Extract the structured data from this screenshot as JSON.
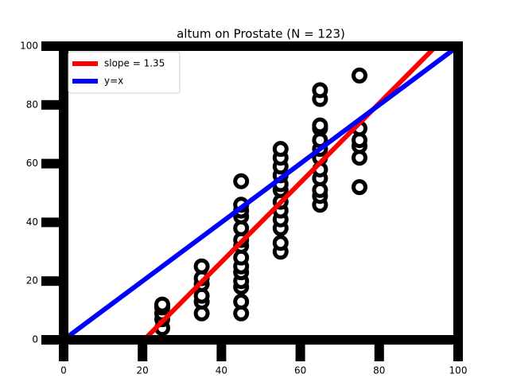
{
  "chart_data": {
    "type": "scatter",
    "title": "altum on Prostate (N = 123)",
    "xlim": [
      0,
      100
    ],
    "ylim": [
      0,
      100
    ],
    "xticks": [
      0,
      20,
      40,
      60,
      80,
      100
    ],
    "yticks": [
      0,
      20,
      40,
      60,
      80,
      100
    ],
    "legend": "upper left",
    "series": [
      {
        "name": "slope = 1.35",
        "type": "line",
        "color": "#ff0000",
        "x": [
          20.4,
          94.4
        ],
        "values": [
          0,
          100
        ]
      },
      {
        "name": "y=x",
        "type": "line",
        "color": "#0000ff",
        "x": [
          0,
          100
        ],
        "values": [
          0,
          100
        ]
      },
      {
        "type": "scatter",
        "color": "#000000",
        "x": [
          25,
          25,
          25,
          25,
          25,
          35,
          35,
          35,
          35,
          35,
          35,
          45,
          45,
          45,
          45,
          45,
          45,
          45,
          45,
          45,
          45,
          45,
          45,
          45,
          45,
          55,
          55,
          55,
          55,
          55,
          55,
          55,
          55,
          55,
          55,
          55,
          55,
          65,
          65,
          65,
          65,
          65,
          65,
          65,
          65,
          65,
          65,
          65,
          65,
          75,
          75,
          75,
          75,
          75,
          75
        ],
        "values": [
          4,
          7,
          9,
          11,
          12,
          9,
          13,
          15,
          19,
          21,
          25,
          9,
          13,
          18,
          20,
          23,
          25,
          28,
          32,
          34,
          38,
          42,
          44,
          46,
          54,
          30,
          33,
          38,
          41,
          44,
          47,
          51,
          53,
          56,
          59,
          62,
          65,
          46,
          49,
          51,
          55,
          58,
          62,
          65,
          68,
          72,
          73,
          82,
          85,
          52,
          62,
          66,
          68,
          72,
          90
        ]
      }
    ]
  }
}
